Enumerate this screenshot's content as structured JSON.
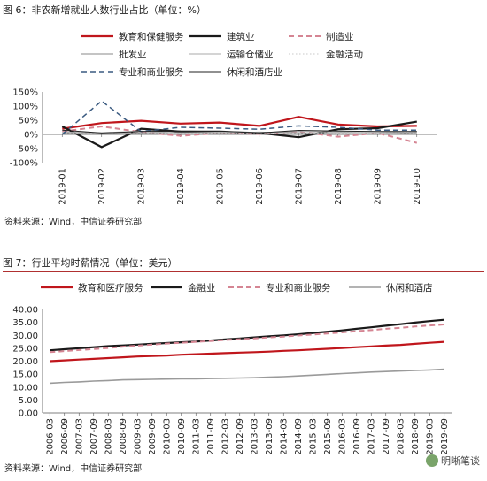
{
  "figure1": {
    "title": "图 6：非农新增就业人数行业占比（单位：%）",
    "source": "资料来源：Wind，中信证券研究部"
  },
  "figure2": {
    "title": "图 7：行业平均时薪情况（单位：美元）",
    "source": "资料来源：Wind，中信证券研究部"
  },
  "watermark": "明晰笔谈",
  "chart_data": [
    {
      "type": "line",
      "title": "非农新增就业人数行业占比",
      "xlabel": "",
      "ylabel": "",
      "categories": [
        "2019-01",
        "2019-02",
        "2019-03",
        "2019-04",
        "2019-05",
        "2019-06",
        "2019-07",
        "2019-08",
        "2019-09",
        "2019-10"
      ],
      "ylim": [
        -100,
        150
      ],
      "yticks": [
        "150%",
        "100%",
        "50%",
        "0%",
        "-50%",
        "-100%"
      ],
      "ytick_values": [
        150,
        100,
        50,
        0,
        -50,
        -100
      ],
      "legend_position": "top",
      "series": [
        {
          "name": "教育和保健服务",
          "color": "#c0161c",
          "style": "solid",
          "width": 2.2,
          "values": [
            20,
            40,
            48,
            38,
            42,
            30,
            62,
            35,
            28,
            30
          ]
        },
        {
          "name": "建筑业",
          "color": "#1a1a1a",
          "style": "solid",
          "width": 2.2,
          "values": [
            28,
            -45,
            20,
            10,
            8,
            5,
            -10,
            18,
            22,
            45
          ]
        },
        {
          "name": "制造业",
          "color": "#d58593",
          "style": "dash",
          "width": 2,
          "values": [
            10,
            28,
            8,
            -5,
            5,
            2,
            10,
            -8,
            5,
            -30
          ]
        },
        {
          "name": "批发业",
          "color": "#888888",
          "style": "solid",
          "width": 1,
          "values": [
            5,
            2,
            5,
            6,
            5,
            8,
            5,
            3,
            2,
            6
          ]
        },
        {
          "name": "运输仓储业",
          "color": "#aaaaaa",
          "style": "solid",
          "width": 1,
          "values": [
            8,
            6,
            12,
            5,
            8,
            6,
            10,
            8,
            6,
            10
          ]
        },
        {
          "name": "金融活动",
          "color": "#c8c8c8",
          "style": "dot",
          "width": 1,
          "values": [
            6,
            5,
            7,
            4,
            6,
            4,
            5,
            6,
            5,
            7
          ]
        },
        {
          "name": "专业和商业服务",
          "color": "#3a5a80",
          "style": "dash",
          "width": 1.5,
          "values": [
            0,
            118,
            10,
            25,
            22,
            18,
            30,
            25,
            15,
            15
          ]
        },
        {
          "name": "休闲和酒店业",
          "color": "#222222",
          "style": "solid",
          "width": 1,
          "values": [
            15,
            5,
            10,
            12,
            12,
            5,
            14,
            12,
            10,
            10
          ]
        }
      ]
    },
    {
      "type": "line",
      "title": "行业平均时薪情况",
      "xlabel": "",
      "ylabel": "",
      "categories": [
        "2006-03",
        "2006-09",
        "2007-03",
        "2007-09",
        "2008-03",
        "2008-09",
        "2009-03",
        "2009-09",
        "2010-03",
        "2010-09",
        "2011-03",
        "2011-09",
        "2012-03",
        "2012-09",
        "2013-03",
        "2013-09",
        "2014-03",
        "2014-09",
        "2015-03",
        "2015-09",
        "2016-03",
        "2016-09",
        "2017-03",
        "2017-09",
        "2018-03",
        "2018-09",
        "2019-03",
        "2019-09"
      ],
      "ylim": [
        0,
        40
      ],
      "yticks": [
        "40.00",
        "35.00",
        "30.00",
        "25.00",
        "20.00",
        "15.00",
        "10.00",
        "5.00",
        "0.00"
      ],
      "ytick_values": [
        40,
        35,
        30,
        25,
        20,
        15,
        10,
        5,
        0
      ],
      "legend_position": "top",
      "series": [
        {
          "name": "教育和医疗服务",
          "color": "#c0161c",
          "style": "solid",
          "width": 2.2,
          "values": [
            20.0,
            20.3,
            20.6,
            20.9,
            21.2,
            21.5,
            21.8,
            22.0,
            22.2,
            22.5,
            22.7,
            22.9,
            23.1,
            23.3,
            23.5,
            23.7,
            24.0,
            24.2,
            24.5,
            24.8,
            25.1,
            25.4,
            25.7,
            26.0,
            26.3,
            26.7,
            27.1,
            27.5
          ]
        },
        {
          "name": "金融业",
          "color": "#1a1a1a",
          "style": "solid",
          "width": 2.2,
          "values": [
            24.2,
            24.6,
            25.0,
            25.4,
            25.8,
            26.1,
            26.4,
            26.7,
            27.0,
            27.3,
            27.6,
            28.0,
            28.4,
            28.8,
            29.2,
            29.6,
            30.0,
            30.4,
            30.9,
            31.4,
            31.9,
            32.5,
            33.1,
            33.7,
            34.3,
            34.9,
            35.5,
            36.0
          ]
        },
        {
          "name": "专业和商业服务",
          "color": "#d58593",
          "style": "dash",
          "width": 2,
          "values": [
            23.5,
            23.9,
            24.3,
            24.7,
            25.1,
            25.6,
            26.0,
            26.4,
            26.8,
            27.1,
            27.5,
            27.8,
            28.2,
            28.5,
            28.8,
            29.2,
            29.5,
            29.9,
            30.3,
            30.7,
            31.1,
            31.6,
            32.0,
            32.5,
            32.9,
            33.4,
            33.8,
            34.2
          ]
        },
        {
          "name": "休闲和酒店",
          "color": "#9a9a9a",
          "style": "solid",
          "width": 1.6,
          "values": [
            11.5,
            11.8,
            12.0,
            12.3,
            12.5,
            12.8,
            12.9,
            13.0,
            13.1,
            13.2,
            13.2,
            13.3,
            13.4,
            13.5,
            13.6,
            13.8,
            14.0,
            14.3,
            14.6,
            14.9,
            15.2,
            15.5,
            15.8,
            16.0,
            16.2,
            16.4,
            16.6,
            16.9
          ]
        }
      ]
    }
  ]
}
